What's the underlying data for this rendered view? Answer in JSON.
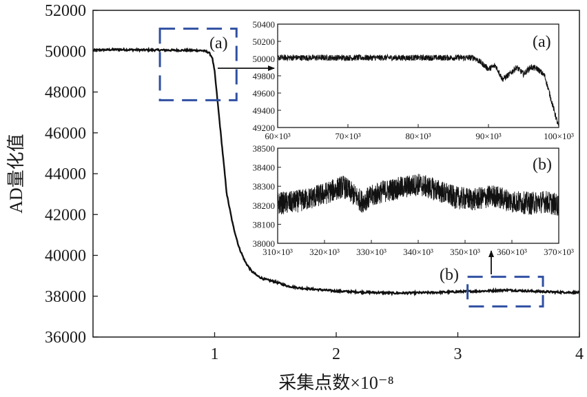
{
  "chart_data": {
    "type": "line",
    "main": {
      "xlabel": "采集点数×10⁻⁸",
      "ylabel": "AD量化值",
      "xlim": [
        0,
        4
      ],
      "ylim": [
        36000,
        52000
      ],
      "xticks": [
        1,
        2,
        3,
        4
      ],
      "yticks": [
        36000,
        38000,
        40000,
        42000,
        44000,
        46000,
        48000,
        50000,
        52000
      ],
      "series": [
        {
          "name": "AD量化值",
          "x": [
            0,
            0.2,
            0.4,
            0.6,
            0.8,
            0.9,
            0.95,
            0.98,
            1.0,
            1.02,
            1.05,
            1.08,
            1.1,
            1.15,
            1.2,
            1.25,
            1.3,
            1.35,
            1.4,
            1.5,
            1.6,
            1.7,
            1.8,
            2.0,
            2.2,
            2.5,
            2.8,
            3.0,
            3.2,
            3.4,
            3.6,
            3.8,
            4.0
          ],
          "y": [
            50050,
            50080,
            50060,
            50050,
            50040,
            50030,
            49950,
            49700,
            49000,
            47800,
            46000,
            44200,
            43000,
            41500,
            40400,
            39700,
            39250,
            39000,
            38850,
            38700,
            38500,
            38400,
            38350,
            38250,
            38200,
            38150,
            38180,
            38220,
            38250,
            38300,
            38250,
            38200,
            38180
          ]
        }
      ],
      "annotations": [
        {
          "label": "(a)",
          "region_x": [
            0.55,
            1.18
          ],
          "region_y": [
            47600,
            51100
          ]
        },
        {
          "label": "(b)",
          "region_x": [
            3.08,
            3.7
          ],
          "region_y": [
            37500,
            38950
          ]
        }
      ]
    },
    "insets": [
      {
        "id": "a",
        "label": "(a)",
        "xlim": [
          60000,
          100000
        ],
        "ylim": [
          49200,
          50400
        ],
        "xtick_labels": [
          "60×10³",
          "70×10³",
          "80×10³",
          "90×10³",
          "100×10³"
        ],
        "ytick_labels": [
          "50400",
          "50200",
          "50000",
          "49800",
          "49600",
          "49400",
          "49200"
        ],
        "series": [
          {
            "name": "AD量化值(a)",
            "x": [
              60000,
              70000,
              80000,
              88000,
              89000,
              90000,
              91000,
              92000,
              93000,
              94000,
              95000,
              96000,
              97000,
              98000,
              99000,
              100000
            ],
            "y": [
              50010,
              50010,
              50010,
              50010,
              49950,
              49880,
              49920,
              49760,
              49820,
              49900,
              49820,
              49900,
              49880,
              49800,
              49500,
              49200
            ]
          }
        ]
      },
      {
        "id": "b",
        "label": "(b)",
        "xlim": [
          310000,
          370000
        ],
        "ylim": [
          38000,
          38500
        ],
        "xtick_labels": [
          "310×10³",
          "320×10³",
          "330×10³",
          "340×10³",
          "350×10³",
          "360×10³",
          "370×10³"
        ],
        "ytick_labels": [
          "38500",
          "38400",
          "38300",
          "38200",
          "38100",
          "38000"
        ],
        "series": [
          {
            "name": "AD量化值(b)",
            "x": [
              310000,
              313000,
              316000,
              320000,
              324000,
              328000,
              332000,
              336000,
              340000,
              344000,
              348000,
              352000,
              356000,
              360000,
              364000,
              367000,
              370000
            ],
            "y": [
              38210,
              38215,
              38230,
              38260,
              38300,
              38220,
              38270,
              38290,
              38310,
              38280,
              38240,
              38230,
              38250,
              38220,
              38210,
              38220,
              38200
            ]
          }
        ]
      }
    ]
  }
}
